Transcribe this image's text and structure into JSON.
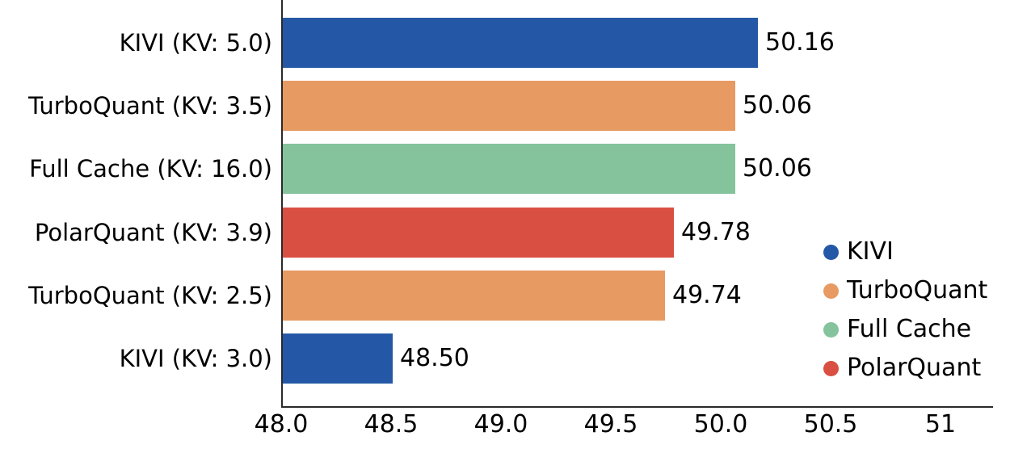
{
  "chart_data": {
    "type": "bar",
    "orientation": "horizontal",
    "title": "",
    "xlabel": "",
    "ylabel": "",
    "grid": false,
    "categories": [
      "KIVI (KV: 5.0)",
      "TurboQuant (KV: 3.5)",
      "Full Cache (KV: 16.0)",
      "PolarQuant (KV: 3.9)",
      "TurboQuant (KV: 2.5)",
      "KIVI (KV: 3.0)"
    ],
    "values": [
      50.16,
      50.06,
      50.06,
      49.78,
      49.74,
      48.5
    ],
    "value_labels": [
      "50.16",
      "50.06",
      "50.06",
      "49.78",
      "49.74",
      "48.50"
    ],
    "bar_series": [
      "KIVI",
      "TurboQuant",
      "Full Cache",
      "PolarQuant",
      "TurboQuant",
      "KIVI"
    ],
    "bar_colors": [
      "#2458A6",
      "#E79A62",
      "#84C39B",
      "#D94F41",
      "#E79A62",
      "#2458A6"
    ],
    "xlim": [
      48.0,
      51.23
    ],
    "x_ticks": [
      48.0,
      48.5,
      49.0,
      49.5,
      50.0,
      50.5,
      51.0
    ],
    "x_tick_labels": [
      "48.0",
      "48.5",
      "49.0",
      "49.5",
      "50.0",
      "50.5",
      "51"
    ],
    "legend": {
      "position": "right-middle",
      "entries": [
        {
          "label": "KIVI",
          "color": "#2458A6"
        },
        {
          "label": "TurboQuant",
          "color": "#E79A62"
        },
        {
          "label": "Full Cache",
          "color": "#84C39B"
        },
        {
          "label": "PolarQuant",
          "color": "#D94F41"
        }
      ]
    }
  },
  "colors": {
    "background": "#ffffff",
    "axis": "#2a2a2a",
    "text": "#000000"
  }
}
